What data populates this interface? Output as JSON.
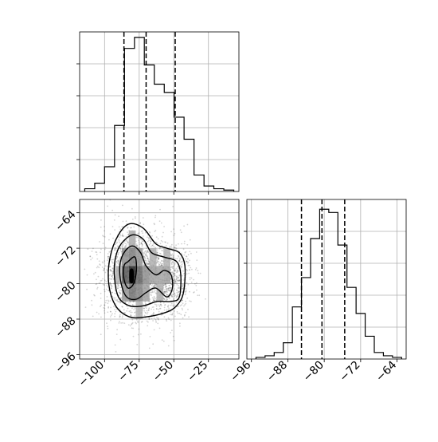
{
  "chart_data": [
    {
      "type": "histogram",
      "panel": "top-left",
      "variable": "param-1",
      "xlim": [
        -118,
        -3
      ],
      "bins": [
        {
          "x0": -114.3,
          "x1": -107.1,
          "y": 1
        },
        {
          "x0": -107.1,
          "x1": -100.0,
          "y": 3
        },
        {
          "x0": -100.0,
          "x1": -92.8,
          "y": 9
        },
        {
          "x0": -92.8,
          "x1": -85.6,
          "y": 24
        },
        {
          "x0": -85.6,
          "x1": -78.4,
          "y": 52
        },
        {
          "x0": -78.4,
          "x1": -71.3,
          "y": 56
        },
        {
          "x0": -71.3,
          "x1": -64.1,
          "y": 46
        },
        {
          "x0": -64.1,
          "x1": -56.9,
          "y": 39
        },
        {
          "x0": -56.9,
          "x1": -49.8,
          "y": 36
        },
        {
          "x0": -49.8,
          "x1": -42.6,
          "y": 27
        },
        {
          "x0": -42.6,
          "x1": -35.4,
          "y": 19
        },
        {
          "x0": -35.4,
          "x1": -28.2,
          "y": 6
        },
        {
          "x0": -28.2,
          "x1": -21.1,
          "y": 2
        },
        {
          "x0": -21.1,
          "x1": -13.9,
          "y": 1
        },
        {
          "x0": -13.9,
          "x1": -6.7,
          "y": 0.5
        }
      ],
      "quantiles": [
        -86,
        -70,
        -49
      ],
      "ylim": [
        0,
        58
      ],
      "grid": true
    },
    {
      "type": "scatter",
      "panel": "bottom-left",
      "xlim": [
        -118,
        -3
      ],
      "ylim": [
        -97,
        -61
      ],
      "xticks": [
        -100,
        -75,
        -50,
        -25
      ],
      "xtick_labels": [
        "−100",
        "−75",
        "−50",
        "−25"
      ],
      "yticks": [
        -64,
        -72,
        -80,
        -88,
        -96
      ],
      "ytick_labels": [
        "−64",
        "−72",
        "−80",
        "−88",
        "−96"
      ],
      "density_modes": [
        {
          "x": -80,
          "y": -78,
          "weight": 0.65
        },
        {
          "x": -55,
          "y": -79,
          "weight": 0.35
        }
      ],
      "density_cells": [
        {
          "x": -80,
          "y": -78,
          "level": 1.0
        },
        {
          "x": -85,
          "y": -78,
          "level": 0.7
        },
        {
          "x": -75,
          "y": -78,
          "level": 0.6
        },
        {
          "x": -80,
          "y": -74,
          "level": 0.5
        },
        {
          "x": -80,
          "y": -82,
          "level": 0.55
        },
        {
          "x": -75,
          "y": -82,
          "level": 0.45
        },
        {
          "x": -85,
          "y": -74,
          "level": 0.4
        },
        {
          "x": -70,
          "y": -78,
          "level": 0.4
        },
        {
          "x": -85,
          "y": -82,
          "level": 0.35
        },
        {
          "x": -75,
          "y": -74,
          "level": 0.35
        },
        {
          "x": -70,
          "y": -82,
          "level": 0.3
        },
        {
          "x": -80,
          "y": -70,
          "level": 0.25
        },
        {
          "x": -65,
          "y": -78,
          "level": 0.3
        },
        {
          "x": -60,
          "y": -78,
          "level": 0.28
        },
        {
          "x": -55,
          "y": -78,
          "level": 0.3
        },
        {
          "x": -60,
          "y": -82,
          "level": 0.22
        },
        {
          "x": -55,
          "y": -74,
          "level": 0.2
        },
        {
          "x": -65,
          "y": -74,
          "level": 0.22
        },
        {
          "x": -75,
          "y": -86,
          "level": 0.2
        },
        {
          "x": -90,
          "y": -78,
          "level": 0.2
        }
      ],
      "contours": [
        [
          [
            -90,
            -69
          ],
          [
            -82,
            -66.5
          ],
          [
            -72,
            -67.5
          ],
          [
            -63,
            -71
          ],
          [
            -55,
            -72
          ],
          [
            -46,
            -73
          ],
          [
            -42,
            -76
          ],
          [
            -43,
            -82
          ],
          [
            -48,
            -85
          ],
          [
            -56,
            -86.5
          ],
          [
            -70,
            -87.5
          ],
          [
            -82,
            -87.5
          ],
          [
            -92,
            -85
          ],
          [
            -97,
            -80
          ],
          [
            -96,
            -74
          ]
        ],
        [
          [
            -88,
            -71
          ],
          [
            -80,
            -69
          ],
          [
            -72,
            -70
          ],
          [
            -66,
            -73
          ],
          [
            -57,
            -74
          ],
          [
            -48,
            -75
          ],
          [
            -45,
            -78
          ],
          [
            -46,
            -83
          ],
          [
            -52,
            -84
          ],
          [
            -62,
            -84
          ],
          [
            -72,
            -85
          ],
          [
            -82,
            -85
          ],
          [
            -90,
            -83
          ],
          [
            -93,
            -78
          ],
          [
            -92,
            -74
          ]
        ],
        [
          [
            -86,
            -73
          ],
          [
            -80,
            -71.5
          ],
          [
            -74,
            -73
          ],
          [
            -70,
            -76
          ],
          [
            -63,
            -78
          ],
          [
            -57,
            -77
          ],
          [
            -52,
            -78
          ],
          [
            -51,
            -81
          ],
          [
            -55,
            -83
          ],
          [
            -63,
            -81
          ],
          [
            -70,
            -82
          ],
          [
            -77,
            -83.5
          ],
          [
            -84,
            -83
          ],
          [
            -88,
            -80
          ],
          [
            -89,
            -76
          ]
        ],
        [
          [
            -83,
            -75
          ],
          [
            -78,
            -74
          ],
          [
            -77,
            -77
          ],
          [
            -79,
            -80
          ],
          [
            -83,
            -81
          ],
          [
            -86,
            -79
          ],
          [
            -86,
            -76
          ]
        ],
        [
          [
            -81.5,
            -77
          ],
          [
            -79.5,
            -77
          ],
          [
            -79.5,
            -79.5
          ],
          [
            -81.5,
            -79.5
          ]
        ]
      ],
      "grid": true
    },
    {
      "type": "histogram",
      "panel": "bottom-right",
      "variable": "param-2",
      "xlim": [
        -97,
        -62
      ],
      "xticks": [
        -96,
        -88,
        -80,
        -72,
        -64
      ],
      "xtick_labels": [
        "−96",
        "−88",
        "−80",
        "−72",
        "−64"
      ],
      "bins": [
        {
          "x0": -95.0,
          "x1": -93.0,
          "y": 0.5
        },
        {
          "x0": -93.0,
          "x1": -91.0,
          "y": 1
        },
        {
          "x0": -91.0,
          "x1": -89.0,
          "y": 2
        },
        {
          "x0": -89.0,
          "x1": -87.0,
          "y": 5
        },
        {
          "x0": -87.0,
          "x1": -85.0,
          "y": 16
        },
        {
          "x0": -85.0,
          "x1": -83.0,
          "y": 25
        },
        {
          "x0": -83.0,
          "x1": -81.0,
          "y": 37
        },
        {
          "x0": -81.0,
          "x1": -79.0,
          "y": 46
        },
        {
          "x0": -79.0,
          "x1": -77.0,
          "y": 45
        },
        {
          "x0": -77.0,
          "x1": -75.0,
          "y": 35
        },
        {
          "x0": -75.0,
          "x1": -73.0,
          "y": 22
        },
        {
          "x0": -73.0,
          "x1": -71.0,
          "y": 14
        },
        {
          "x0": -71.0,
          "x1": -69.0,
          "y": 7
        },
        {
          "x0": -69.0,
          "x1": -67.0,
          "y": 2
        },
        {
          "x0": -67.0,
          "x1": -65.0,
          "y": 1
        },
        {
          "x0": -65.0,
          "x1": -63.0,
          "y": 0.5
        }
      ],
      "quantiles": [
        -85,
        -80.5,
        -75.5
      ],
      "ylim": [
        0,
        49
      ],
      "grid": true
    }
  ]
}
